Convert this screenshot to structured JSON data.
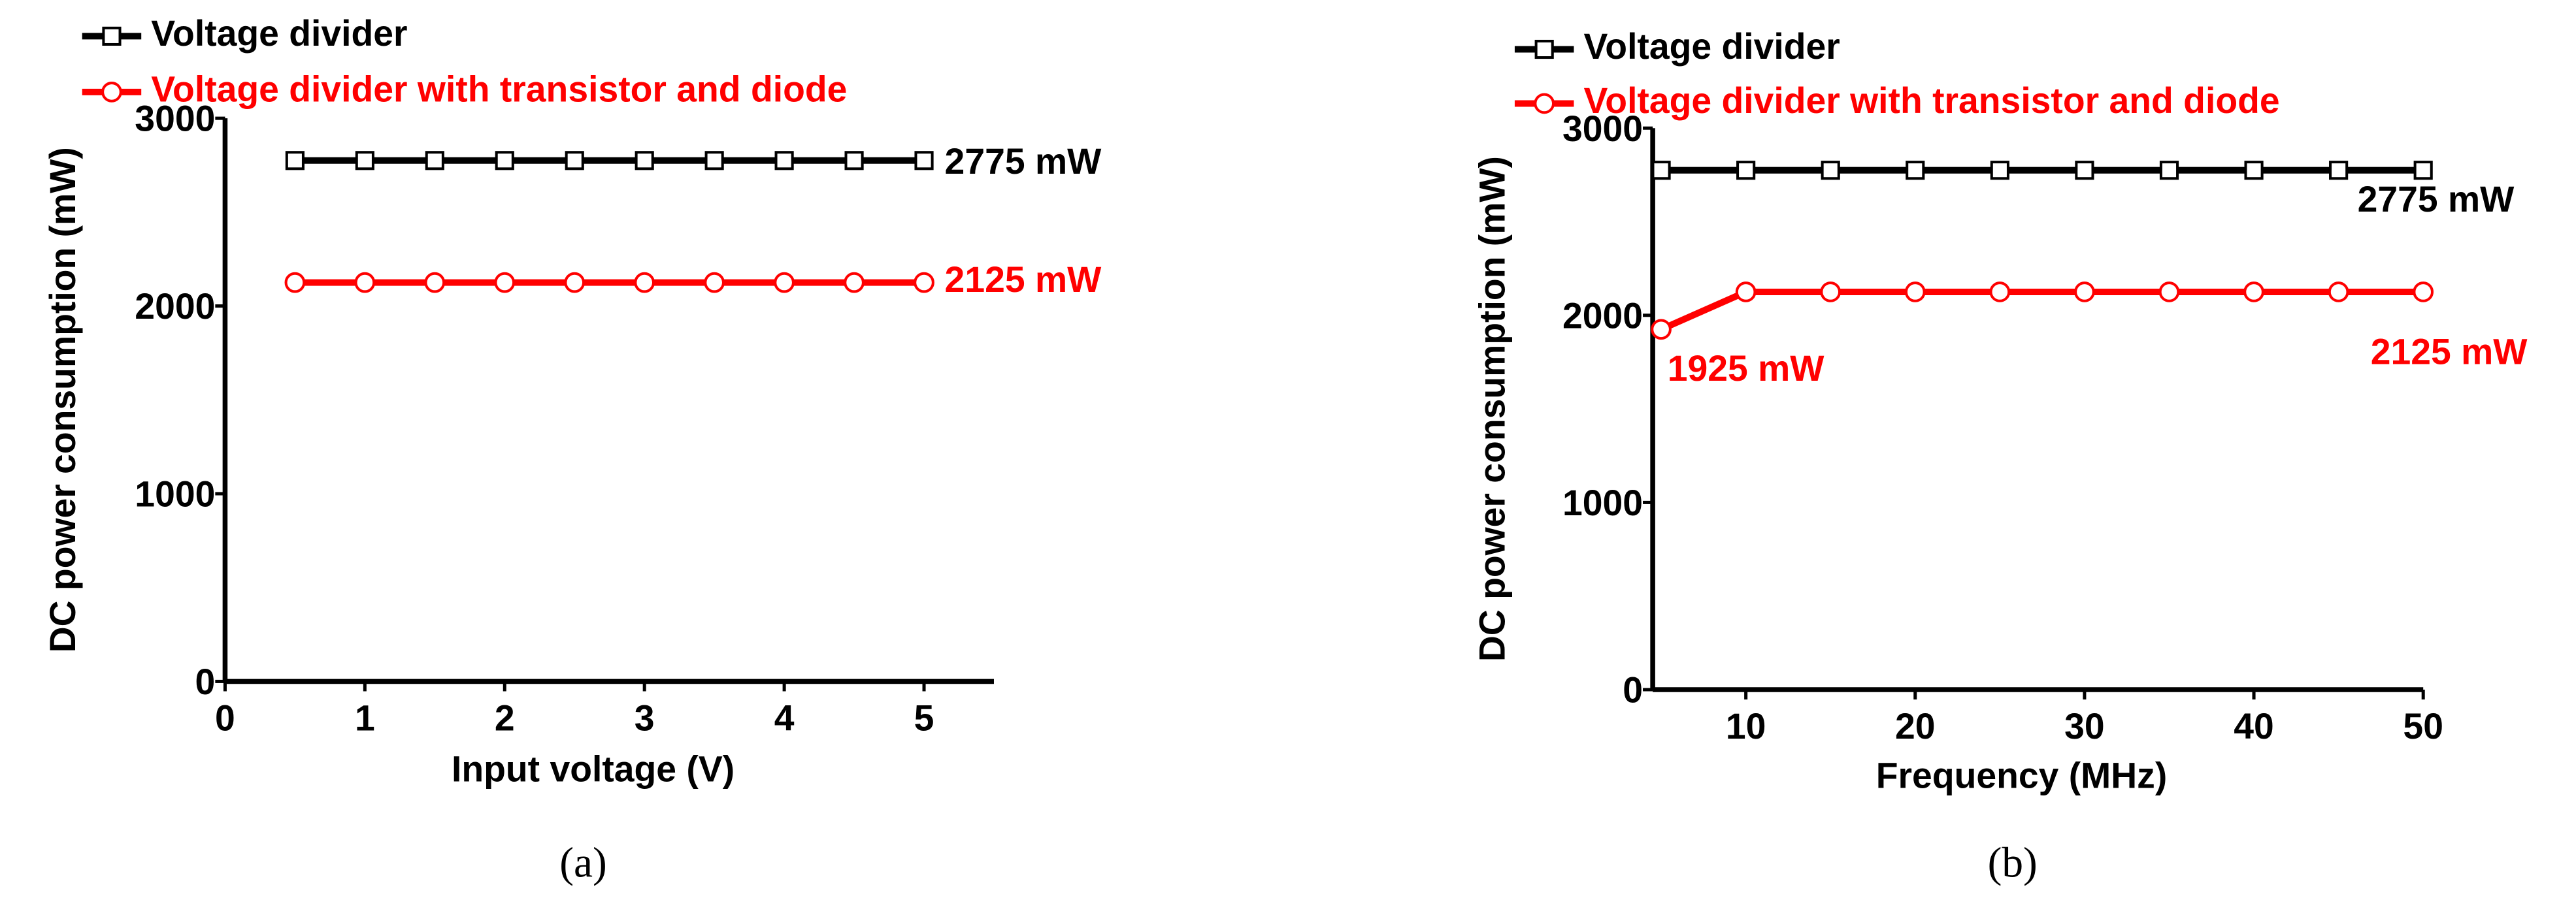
{
  "chart_data": [
    {
      "type": "line",
      "caption": "(a)",
      "xlabel": "Input voltage (V)",
      "ylabel": "DC power consumption (mW)",
      "x": [
        0.5,
        1,
        1.5,
        2,
        2.5,
        3,
        3.5,
        4,
        4.5,
        5
      ],
      "series": [
        {
          "name": "Voltage divider",
          "color": "#000000",
          "marker": "square",
          "values": [
            2775,
            2775,
            2775,
            2775,
            2775,
            2775,
            2775,
            2775,
            2775,
            2775
          ]
        },
        {
          "name": "Voltage divider with transistor and diode",
          "color": "#ff0000",
          "marker": "circle",
          "values": [
            2125,
            2125,
            2125,
            2125,
            2125,
            2125,
            2125,
            2125,
            2125,
            2125
          ]
        }
      ],
      "annotations": [
        {
          "text": "2775 mW",
          "color": "#000000"
        },
        {
          "text": "2125 mW",
          "color": "#ff0000"
        }
      ],
      "xlim": [
        0,
        5.5
      ],
      "xticks": [
        0,
        1,
        2,
        3,
        4,
        5
      ],
      "ylim": [
        0,
        3000
      ],
      "yticks": [
        0,
        1000,
        2000,
        3000
      ],
      "grid": false
    },
    {
      "type": "line",
      "caption": "(b)",
      "xlabel": "Frequency (MHz)",
      "ylabel": "DC power consumption (mW)",
      "x": [
        5,
        10,
        15,
        20,
        25,
        30,
        35,
        40,
        45,
        50
      ],
      "series": [
        {
          "name": "Voltage divider",
          "color": "#000000",
          "marker": "square",
          "values": [
            2775,
            2775,
            2775,
            2775,
            2775,
            2775,
            2775,
            2775,
            2775,
            2775
          ]
        },
        {
          "name": "Voltage divider with transistor and diode",
          "color": "#ff0000",
          "marker": "circle",
          "values": [
            1925,
            2125,
            2125,
            2125,
            2125,
            2125,
            2125,
            2125,
            2125,
            2125
          ]
        }
      ],
      "annotations": [
        {
          "text": "2775 mW",
          "color": "#000000"
        },
        {
          "text": "1925 mW",
          "color": "#ff0000"
        },
        {
          "text": "2125 mW",
          "color": "#ff0000"
        }
      ],
      "xlim": [
        4.5,
        50
      ],
      "xticks": [
        10,
        20,
        30,
        40,
        50
      ],
      "ylim": [
        0,
        3000
      ],
      "yticks": [
        0,
        1000,
        2000,
        3000
      ],
      "grid": false
    }
  ]
}
